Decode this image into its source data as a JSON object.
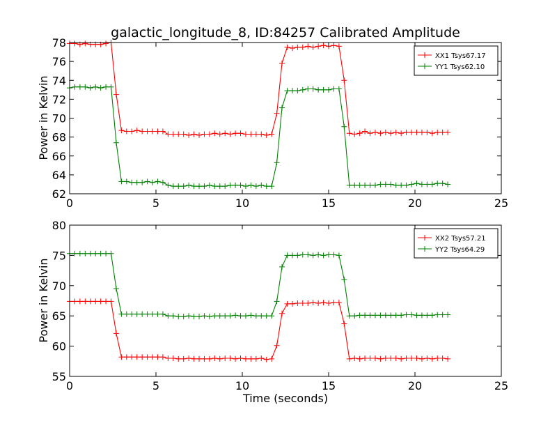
{
  "chart_data": [
    {
      "type": "line",
      "title": "galactic_longitude_8, ID:84257 Calibrated Amplitude",
      "xlabel": "",
      "ylabel": "Power in Kelvin",
      "xlim": [
        0,
        25
      ],
      "ylim": [
        62,
        78
      ],
      "xticks": [
        "0",
        "5",
        "10",
        "15",
        "20",
        "25"
      ],
      "yticks": [
        "62",
        "64",
        "66",
        "68",
        "70",
        "72",
        "74",
        "76",
        "78"
      ],
      "legend_position": "top-right",
      "x": [
        0.0,
        0.3,
        0.6,
        0.9,
        1.2,
        1.5,
        1.8,
        2.1,
        2.4,
        2.7,
        3.0,
        3.3,
        3.6,
        3.9,
        4.2,
        4.5,
        4.8,
        5.1,
        5.4,
        5.7,
        6.0,
        6.3,
        6.6,
        6.9,
        7.2,
        7.5,
        7.8,
        8.1,
        8.4,
        8.7,
        9.0,
        9.3,
        9.6,
        9.9,
        10.2,
        10.5,
        10.8,
        11.1,
        11.4,
        11.7,
        12.0,
        12.3,
        12.6,
        12.9,
        13.2,
        13.5,
        13.8,
        14.1,
        14.4,
        14.7,
        15.0,
        15.3,
        15.6,
        15.9,
        16.2,
        16.5,
        16.8,
        17.1,
        17.4,
        17.7,
        18.0,
        18.3,
        18.6,
        18.9,
        19.2,
        19.5,
        19.8,
        20.1,
        20.4,
        20.7,
        21.0,
        21.3,
        21.6,
        21.9
      ],
      "series": [
        {
          "name": "XX1 Tsys67.17",
          "color": "#ff0000",
          "values": [
            77.9,
            77.9,
            77.8,
            77.9,
            77.8,
            77.8,
            77.8,
            77.9,
            78.0,
            72.5,
            68.7,
            68.6,
            68.6,
            68.7,
            68.6,
            68.6,
            68.6,
            68.6,
            68.6,
            68.3,
            68.3,
            68.3,
            68.3,
            68.2,
            68.3,
            68.2,
            68.3,
            68.3,
            68.4,
            68.3,
            68.4,
            68.3,
            68.4,
            68.4,
            68.3,
            68.3,
            68.3,
            68.3,
            68.2,
            68.3,
            70.5,
            75.8,
            77.5,
            77.4,
            77.5,
            77.5,
            77.6,
            77.5,
            77.6,
            77.7,
            77.6,
            77.7,
            77.6,
            74.0,
            68.4,
            68.3,
            68.4,
            68.6,
            68.4,
            68.5,
            68.4,
            68.5,
            68.4,
            68.5,
            68.4,
            68.5,
            68.5,
            68.5,
            68.5,
            68.5,
            68.4,
            68.5,
            68.5,
            68.5
          ]
        },
        {
          "name": "YY1 Tsys62.10",
          "color": "#008000",
          "values": [
            73.2,
            73.3,
            73.3,
            73.3,
            73.2,
            73.3,
            73.2,
            73.3,
            73.3,
            67.4,
            63.3,
            63.3,
            63.2,
            63.2,
            63.2,
            63.3,
            63.2,
            63.3,
            63.2,
            62.9,
            62.8,
            62.8,
            62.8,
            62.9,
            62.8,
            62.8,
            62.8,
            62.9,
            62.8,
            62.8,
            62.8,
            62.9,
            62.9,
            62.9,
            62.8,
            62.9,
            62.8,
            62.9,
            62.8,
            62.8,
            65.3,
            71.1,
            72.9,
            72.9,
            72.9,
            73.0,
            73.1,
            73.1,
            73.0,
            73.0,
            73.0,
            73.1,
            73.1,
            69.1,
            62.9,
            62.9,
            62.9,
            62.9,
            62.9,
            62.9,
            63.0,
            63.0,
            63.0,
            62.9,
            62.9,
            62.9,
            63.0,
            63.1,
            63.0,
            63.0,
            63.0,
            63.1,
            63.1,
            63.0
          ]
        }
      ]
    },
    {
      "type": "line",
      "title": "",
      "xlabel": "Time (seconds)",
      "ylabel": "Power in Kelvin",
      "xlim": [
        0,
        25
      ],
      "ylim": [
        55,
        80
      ],
      "xticks": [
        "0",
        "5",
        "10",
        "15",
        "20",
        "25"
      ],
      "yticks": [
        "55",
        "60",
        "65",
        "70",
        "75",
        "80"
      ],
      "legend_position": "top-right",
      "x": [
        0.0,
        0.3,
        0.6,
        0.9,
        1.2,
        1.5,
        1.8,
        2.1,
        2.4,
        2.7,
        3.0,
        3.3,
        3.6,
        3.9,
        4.2,
        4.5,
        4.8,
        5.1,
        5.4,
        5.7,
        6.0,
        6.3,
        6.6,
        6.9,
        7.2,
        7.5,
        7.8,
        8.1,
        8.4,
        8.7,
        9.0,
        9.3,
        9.6,
        9.9,
        10.2,
        10.5,
        10.8,
        11.1,
        11.4,
        11.7,
        12.0,
        12.3,
        12.6,
        12.9,
        13.2,
        13.5,
        13.8,
        14.1,
        14.4,
        14.7,
        15.0,
        15.3,
        15.6,
        15.9,
        16.2,
        16.5,
        16.8,
        17.1,
        17.4,
        17.7,
        18.0,
        18.3,
        18.6,
        18.9,
        19.2,
        19.5,
        19.8,
        20.1,
        20.4,
        20.7,
        21.0,
        21.3,
        21.6,
        21.9
      ],
      "series": [
        {
          "name": "XX2 Tsys57.21",
          "color": "#ff0000",
          "values": [
            67.4,
            67.4,
            67.4,
            67.4,
            67.4,
            67.4,
            67.4,
            67.4,
            67.4,
            62.1,
            58.2,
            58.2,
            58.2,
            58.2,
            58.2,
            58.2,
            58.2,
            58.2,
            58.2,
            58.0,
            58.0,
            57.9,
            57.9,
            58.0,
            57.9,
            57.9,
            57.9,
            57.9,
            58.0,
            57.9,
            58.0,
            58.0,
            57.9,
            58.0,
            57.9,
            57.9,
            57.9,
            58.0,
            57.8,
            57.9,
            60.1,
            65.4,
            67.0,
            67.0,
            67.1,
            67.1,
            67.1,
            67.2,
            67.1,
            67.2,
            67.1,
            67.2,
            67.2,
            63.7,
            57.9,
            58.0,
            57.9,
            58.0,
            58.0,
            58.0,
            57.9,
            58.0,
            58.0,
            58.0,
            57.9,
            58.0,
            58.0,
            58.0,
            57.9,
            58.0,
            57.9,
            58.0,
            58.0,
            57.9
          ]
        },
        {
          "name": "YY2 Tsys64.29",
          "color": "#008000",
          "values": [
            75.3,
            75.3,
            75.3,
            75.3,
            75.3,
            75.3,
            75.3,
            75.3,
            75.3,
            69.5,
            65.3,
            65.3,
            65.3,
            65.3,
            65.3,
            65.3,
            65.3,
            65.3,
            65.3,
            65.0,
            65.0,
            64.9,
            64.9,
            65.0,
            64.9,
            64.9,
            65.0,
            64.9,
            65.0,
            65.0,
            65.0,
            65.0,
            65.1,
            65.0,
            65.0,
            65.1,
            65.0,
            65.0,
            65.0,
            65.0,
            67.4,
            73.1,
            75.0,
            75.0,
            75.0,
            75.1,
            75.1,
            75.0,
            75.1,
            75.0,
            75.1,
            75.1,
            75.0,
            71.0,
            65.0,
            65.0,
            65.1,
            65.1,
            65.1,
            65.1,
            65.1,
            65.1,
            65.1,
            65.1,
            65.1,
            65.2,
            65.2,
            65.1,
            65.1,
            65.1,
            65.1,
            65.2,
            65.2,
            65.2
          ]
        }
      ]
    }
  ]
}
